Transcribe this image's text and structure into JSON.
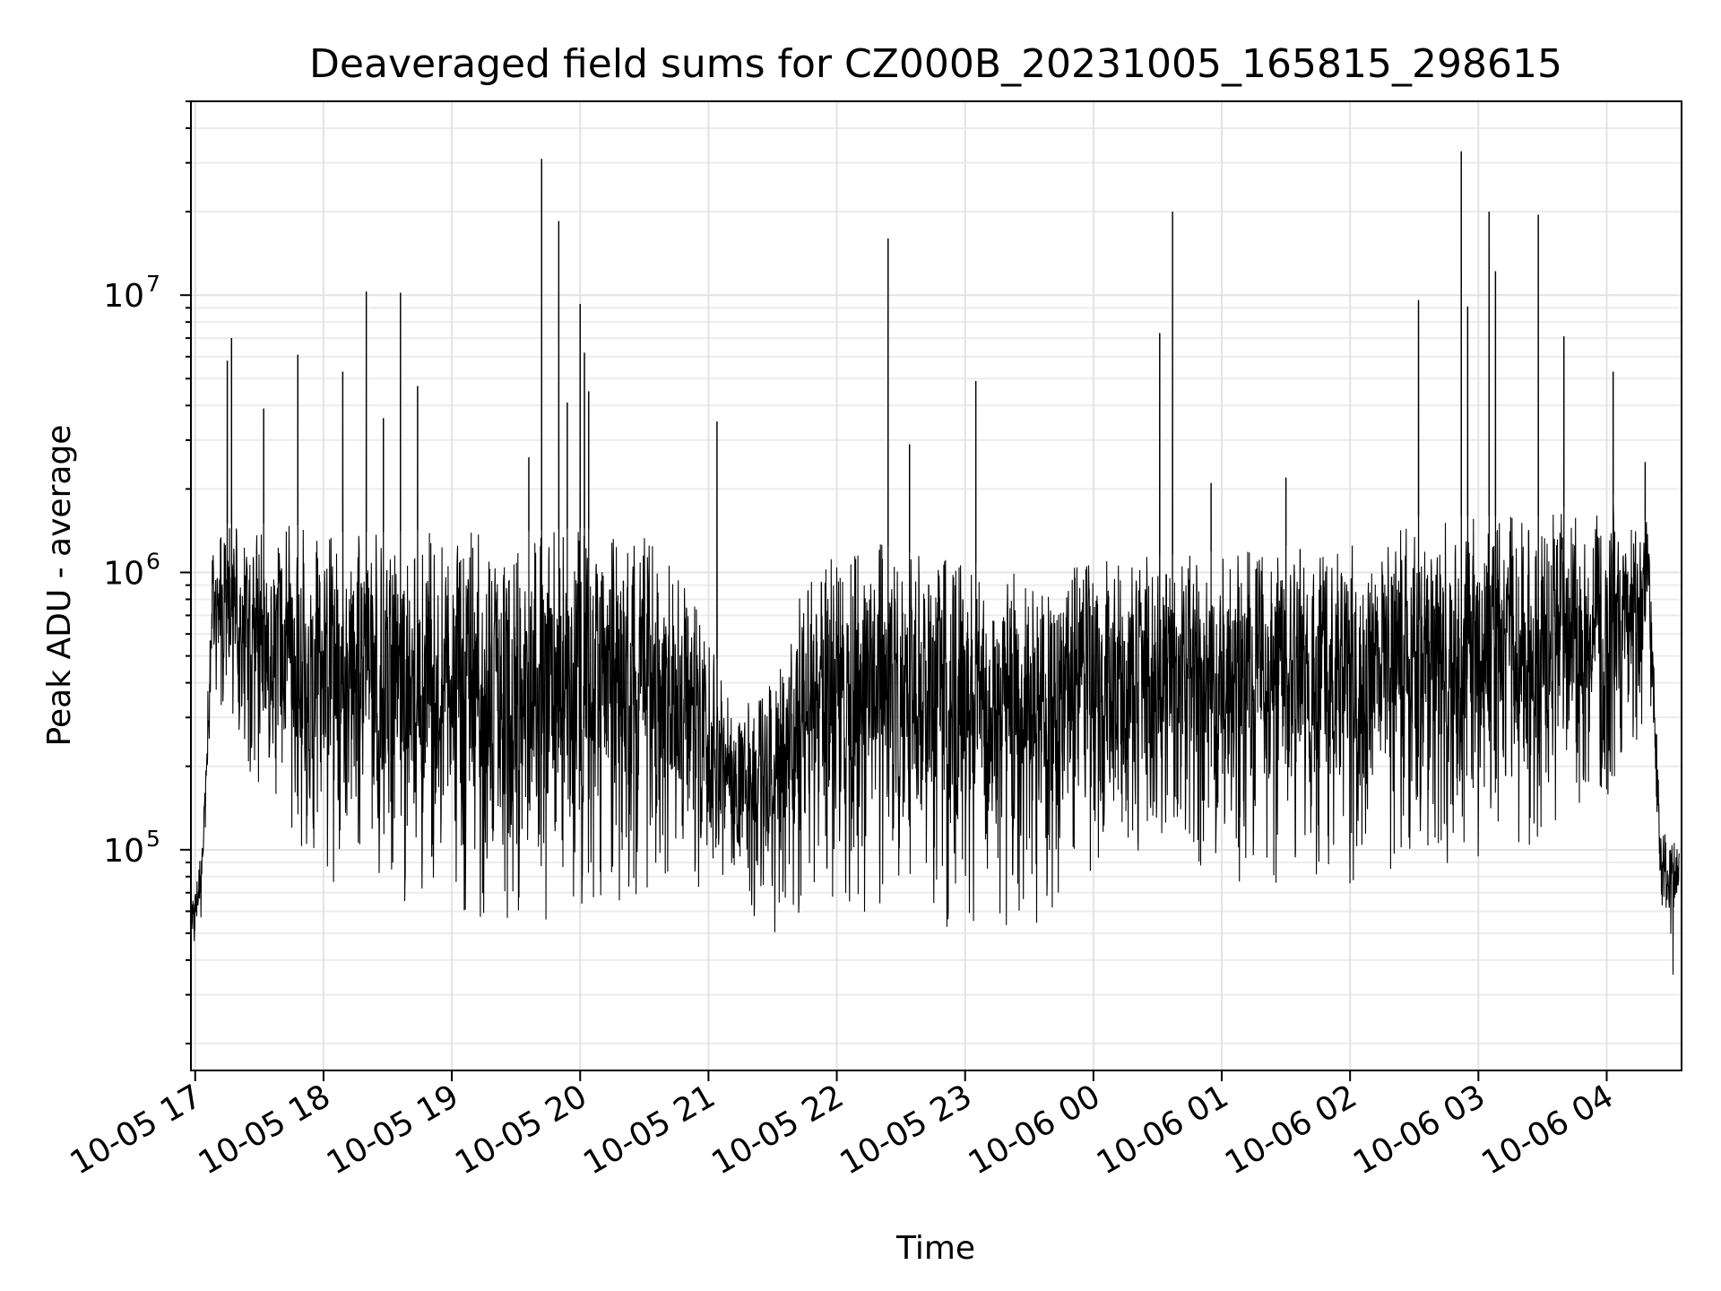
{
  "chart_data": {
    "type": "line",
    "title": "Deaveraged field sums for CZ000B_20231005_165815_298615",
    "xlabel": "Time",
    "ylabel": "Peak ADU - average",
    "yscale": "log",
    "ylim": [
      16000,
      50000000
    ],
    "xlim": [
      "10-05 16:58",
      "10-06 04:35"
    ],
    "grid": true,
    "x_ticks": [
      "10-05 17",
      "10-05 18",
      "10-05 19",
      "10-05 20",
      "10-05 21",
      "10-05 22",
      "10-05 23",
      "10-06 00",
      "10-06 01",
      "10-06 02",
      "10-06 03",
      "10-06 04"
    ],
    "y_ticks": [
      {
        "value": 100000,
        "base": "10",
        "exp": "5"
      },
      {
        "value": 1000000,
        "base": "10",
        "exp": "6"
      },
      {
        "value": 10000000,
        "base": "10",
        "exp": "7"
      }
    ],
    "series": [
      {
        "color": "#000000",
        "envelope": [
          {
            "t": "10-05 16:58",
            "low": 42000,
            "high": 60000
          },
          {
            "t": "10-05 17:03",
            "low": 55000,
            "high": 100000
          },
          {
            "t": "10-05 17:08",
            "low": 300000,
            "high": 1200000
          },
          {
            "t": "10-05 17:15",
            "low": 300000,
            "high": 1500000
          },
          {
            "t": "10-05 17:30",
            "low": 150000,
            "high": 1500000
          },
          {
            "t": "10-05 17:45",
            "low": 90000,
            "high": 1500000
          },
          {
            "t": "10-05 18:00",
            "low": 70000,
            "high": 1400000
          },
          {
            "t": "10-05 18:30",
            "low": 65000,
            "high": 1400000
          },
          {
            "t": "10-05 19:00",
            "low": 55000,
            "high": 1450000
          },
          {
            "t": "10-05 19:30",
            "low": 55000,
            "high": 1400000
          },
          {
            "t": "10-05 20:00",
            "low": 55000,
            "high": 1450000
          },
          {
            "t": "10-05 20:30",
            "low": 55000,
            "high": 1350000
          },
          {
            "t": "10-05 20:50",
            "low": 60000,
            "high": 900000
          },
          {
            "t": "10-05 21:15",
            "low": 50000,
            "high": 300000
          },
          {
            "t": "10-05 21:30",
            "low": 48000,
            "high": 500000
          },
          {
            "t": "10-05 21:45",
            "low": 55000,
            "high": 900000
          },
          {
            "t": "10-05 22:00",
            "low": 55000,
            "high": 1200000
          },
          {
            "t": "10-05 22:15",
            "low": 60000,
            "high": 1300000
          },
          {
            "t": "10-05 22:30",
            "low": 60000,
            "high": 1200000
          },
          {
            "t": "10-05 23:00",
            "low": 45000,
            "high": 1100000
          },
          {
            "t": "10-05 23:30",
            "low": 45000,
            "high": 1000000
          },
          {
            "t": "10-06 00:00",
            "low": 80000,
            "high": 1100000
          },
          {
            "t": "10-06 01:00",
            "low": 75000,
            "high": 1200000
          },
          {
            "t": "10-06 02:00",
            "low": 70000,
            "high": 1300000
          },
          {
            "t": "10-06 02:30",
            "low": 80000,
            "high": 1600000
          },
          {
            "t": "10-06 03:00",
            "low": 90000,
            "high": 1600000
          },
          {
            "t": "10-06 03:30",
            "low": 100000,
            "high": 1600000
          },
          {
            "t": "10-06 04:00",
            "low": 150000,
            "high": 2000000
          },
          {
            "t": "10-06 04:20",
            "low": 300000,
            "high": 1500000
          },
          {
            "t": "10-06 04:25",
            "low": 60000,
            "high": 120000
          },
          {
            "t": "10-06 04:31",
            "low": 30000,
            "high": 110000
          },
          {
            "t": "10-06 04:34",
            "low": 70000,
            "high": 100000
          }
        ],
        "spikes": [
          {
            "t": "10-05 17:15",
            "value": 5800000
          },
          {
            "t": "10-05 17:17",
            "value": 7000000
          },
          {
            "t": "10-05 17:32",
            "value": 3900000
          },
          {
            "t": "10-05 17:48",
            "value": 6100000
          },
          {
            "t": "10-05 18:09",
            "value": 5300000
          },
          {
            "t": "10-05 18:20",
            "value": 10300000
          },
          {
            "t": "10-05 18:28",
            "value": 3600000
          },
          {
            "t": "10-05 18:36",
            "value": 10200000
          },
          {
            "t": "10-05 18:44",
            "value": 4700000
          },
          {
            "t": "10-05 19:36",
            "value": 2600000
          },
          {
            "t": "10-05 19:42",
            "value": 31000000
          },
          {
            "t": "10-05 19:50",
            "value": 18500000
          },
          {
            "t": "10-05 19:54",
            "value": 4100000
          },
          {
            "t": "10-05 20:00",
            "value": 9300000
          },
          {
            "t": "10-05 20:02",
            "value": 6200000
          },
          {
            "t": "10-05 20:04",
            "value": 4500000
          },
          {
            "t": "10-05 21:04",
            "value": 3500000
          },
          {
            "t": "10-05 22:24",
            "value": 16000000
          },
          {
            "t": "10-05 22:34",
            "value": 2900000
          },
          {
            "t": "10-05 23:05",
            "value": 4900000
          },
          {
            "t": "10-06 00:31",
            "value": 7300000
          },
          {
            "t": "10-06 00:37",
            "value": 20000000
          },
          {
            "t": "10-06 00:55",
            "value": 2100000
          },
          {
            "t": "10-06 01:30",
            "value": 2200000
          },
          {
            "t": "10-06 02:32",
            "value": 9600000
          },
          {
            "t": "10-06 02:52",
            "value": 33000000
          },
          {
            "t": "10-06 02:55",
            "value": 9100000
          },
          {
            "t": "10-06 03:05",
            "value": 20000000
          },
          {
            "t": "10-06 03:08",
            "value": 12200000
          },
          {
            "t": "10-06 03:28",
            "value": 19500000
          },
          {
            "t": "10-06 03:40",
            "value": 7100000
          },
          {
            "t": "10-06 04:03",
            "value": 5300000
          },
          {
            "t": "10-06 04:18",
            "value": 2500000
          }
        ]
      }
    ]
  }
}
